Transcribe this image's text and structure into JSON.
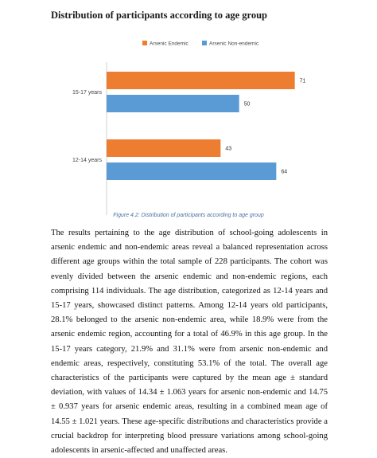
{
  "heading": "Distribution of participants according to age group",
  "figure_caption": "Figure 4.2: Distribution of participants according to age group",
  "body_text": "The results pertaining to the age distribution of school-going adolescents in arsenic endemic and non-endemic areas reveal a balanced representation across different age groups within the total sample of 228 participants. The cohort was evenly divided between the arsenic endemic and non-endemic regions, each comprising 114 individuals. The age distribution, categorized as 12-14 years and 15-17 years, showcased distinct patterns. Among 12-14 years old participants, 28.1% belonged to the arsenic non-endemic area, while 18.9% were from the arsenic endemic region, accounting for a total of 46.9% in this age group. In the 15-17 years category, 21.9% and 31.1% were from arsenic non-endemic and endemic areas, respectively, constituting 53.1% of the total. The overall age characteristics of the participants were captured by the mean age ± standard deviation, with values of 14.34 ± 1.063 years for arsenic non-endemic and 14.75 ± 0.937 years for arsenic endemic areas, resulting in a combined mean age of 14.55 ± 1.021 years. These age-specific distributions and characteristics provide a crucial backdrop for interpreting blood pressure variations among school-going adolescents in arsenic-affected and unaffected areas.",
  "chart_data": {
    "type": "bar",
    "orientation": "horizontal",
    "title": "",
    "xlabel": "",
    "ylabel": "",
    "categories": [
      "15-17 years",
      "12-14 years"
    ],
    "series": [
      {
        "name": "Arsenic Endemic",
        "color": "#ed7d31",
        "values": [
          71,
          43
        ]
      },
      {
        "name": "Arsenic Non-endemic",
        "color": "#5b9bd5",
        "values": [
          50,
          64
        ]
      }
    ],
    "xlim": [
      0,
      75
    ],
    "grid": false,
    "legend_position": "top"
  }
}
